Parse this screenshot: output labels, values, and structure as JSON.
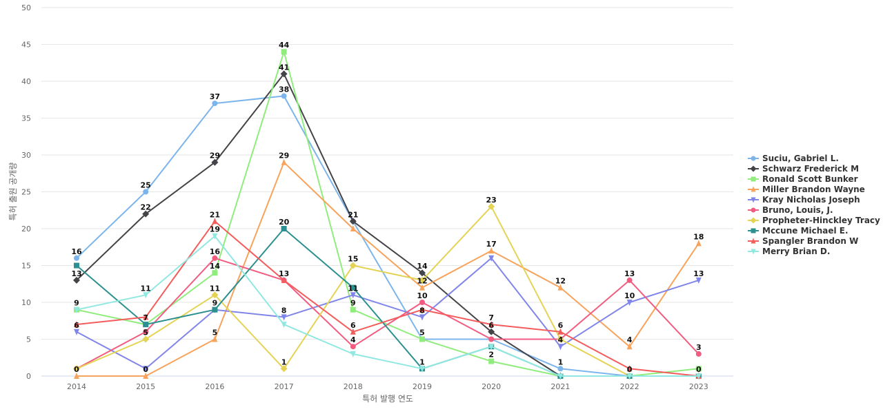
{
  "chart_data": {
    "type": "line",
    "title": "",
    "xlabel": "특허 발행 연도",
    "ylabel": "특허 출원 공개량",
    "x": [
      "2014",
      "2015",
      "2016",
      "2017",
      "2018",
      "2019",
      "2020",
      "2021",
      "2022",
      "2023"
    ],
    "ylim": [
      0,
      50
    ],
    "yticks": [
      0,
      5,
      10,
      15,
      20,
      25,
      30,
      35,
      40,
      45,
      50
    ],
    "grid": true,
    "legend_position": "right",
    "series": [
      {
        "name": "Suciu, Gabriel L.",
        "color": "#7cb5ec",
        "marker": "circle",
        "values": [
          16,
          25,
          37,
          38,
          21,
          5,
          5,
          1,
          0,
          0
        ]
      },
      {
        "name": "Schwarz Frederick M",
        "color": "#434348",
        "marker": "diamond",
        "values": [
          13,
          22,
          29,
          41,
          21,
          14,
          6,
          0,
          0,
          0
        ]
      },
      {
        "name": "Ronald Scott Bunker",
        "color": "#90ed7d",
        "marker": "square",
        "values": [
          9,
          7,
          14,
          44,
          9,
          5,
          2,
          0,
          0,
          1
        ]
      },
      {
        "name": "Miller Brandon Wayne",
        "color": "#f7a35c",
        "marker": "triangle",
        "values": [
          0,
          0,
          5,
          29,
          20,
          12,
          17,
          12,
          4,
          18
        ]
      },
      {
        "name": "Kray Nicholas Joseph",
        "color": "#8085e9",
        "marker": "triangle-down",
        "values": [
          6,
          1,
          9,
          8,
          11,
          8,
          16,
          4,
          10,
          13
        ]
      },
      {
        "name": "Bruno, Louis, J.",
        "color": "#f15c80",
        "marker": "circle",
        "values": [
          1,
          6,
          16,
          13,
          4,
          10,
          5,
          5,
          13,
          3
        ]
      },
      {
        "name": "Propheter-Hinckley Tracy A",
        "color": "#e4d354",
        "marker": "diamond",
        "values": [
          1,
          5,
          11,
          1,
          15,
          13,
          23,
          5,
          0,
          0
        ]
      },
      {
        "name": "Mccune Michael E.",
        "color": "#2b908f",
        "marker": "square",
        "values": [
          15,
          7,
          9,
          20,
          12,
          1,
          4,
          0,
          0,
          0
        ]
      },
      {
        "name": "Spangler Brandon W",
        "color": "#f45b5b",
        "marker": "triangle",
        "values": [
          7,
          8,
          21,
          13,
          6,
          9,
          7,
          6,
          1,
          0
        ]
      },
      {
        "name": "Merry Brian D.",
        "color": "#91e8e1",
        "marker": "triangle-down",
        "values": [
          9,
          11,
          19,
          7,
          3,
          1,
          4,
          0,
          0,
          0
        ]
      }
    ],
    "data_labels": [
      {
        "x": "2014",
        "text": "16",
        "value": 16
      },
      {
        "x": "2014",
        "text": "13",
        "value": 13
      },
      {
        "x": "2014",
        "text": "9",
        "value": 9
      },
      {
        "x": "2014",
        "text": "6",
        "value": 6
      },
      {
        "x": "2014",
        "text": "0",
        "value": 0
      },
      {
        "x": "2015",
        "text": "25",
        "value": 25
      },
      {
        "x": "2015",
        "text": "22",
        "value": 22
      },
      {
        "x": "2015",
        "text": "11",
        "value": 11
      },
      {
        "x": "2015",
        "text": "7",
        "value": 7
      },
      {
        "x": "2015",
        "text": "5",
        "value": 5
      },
      {
        "x": "2015",
        "text": "0",
        "value": 0
      },
      {
        "x": "2016",
        "text": "37",
        "value": 37
      },
      {
        "x": "2016",
        "text": "29",
        "value": 29
      },
      {
        "x": "2016",
        "text": "21",
        "value": 21
      },
      {
        "x": "2016",
        "text": "19",
        "value": 19
      },
      {
        "x": "2016",
        "text": "16",
        "value": 16
      },
      {
        "x": "2016",
        "text": "14",
        "value": 14
      },
      {
        "x": "2016",
        "text": "11",
        "value": 11
      },
      {
        "x": "2016",
        "text": "9",
        "value": 9
      },
      {
        "x": "2016",
        "text": "5",
        "value": 5
      },
      {
        "x": "2017",
        "text": "44",
        "value": 44
      },
      {
        "x": "2017",
        "text": "41",
        "value": 41
      },
      {
        "x": "2017",
        "text": "38",
        "value": 38
      },
      {
        "x": "2017",
        "text": "29",
        "value": 29
      },
      {
        "x": "2017",
        "text": "20",
        "value": 20
      },
      {
        "x": "2017",
        "text": "13",
        "value": 13
      },
      {
        "x": "2017",
        "text": "8",
        "value": 8
      },
      {
        "x": "2017",
        "text": "1",
        "value": 1
      },
      {
        "x": "2018",
        "text": "21",
        "value": 21
      },
      {
        "x": "2018",
        "text": "15",
        "value": 15
      },
      {
        "x": "2018",
        "text": "11",
        "value": 11
      },
      {
        "x": "2018",
        "text": "9",
        "value": 9
      },
      {
        "x": "2018",
        "text": "6",
        "value": 6
      },
      {
        "x": "2018",
        "text": "4",
        "value": 4
      },
      {
        "x": "2019",
        "text": "14",
        "value": 14
      },
      {
        "x": "2019",
        "text": "12",
        "value": 12
      },
      {
        "x": "2019",
        "text": "10",
        "value": 10
      },
      {
        "x": "2019",
        "text": "8",
        "value": 8
      },
      {
        "x": "2019",
        "text": "5",
        "value": 5
      },
      {
        "x": "2019",
        "text": "1",
        "value": 1
      },
      {
        "x": "2020",
        "text": "23",
        "value": 23
      },
      {
        "x": "2020",
        "text": "17",
        "value": 17
      },
      {
        "x": "2020",
        "text": "7",
        "value": 7
      },
      {
        "x": "2020",
        "text": "6",
        "value": 6
      },
      {
        "x": "2020",
        "text": "2",
        "value": 2
      },
      {
        "x": "2021",
        "text": "12",
        "value": 12
      },
      {
        "x": "2021",
        "text": "6",
        "value": 6
      },
      {
        "x": "2021",
        "text": "4",
        "value": 4
      },
      {
        "x": "2021",
        "text": "1",
        "value": 1
      },
      {
        "x": "2022",
        "text": "13",
        "value": 13
      },
      {
        "x": "2022",
        "text": "10",
        "value": 10
      },
      {
        "x": "2022",
        "text": "4",
        "value": 4
      },
      {
        "x": "2022",
        "text": "0",
        "value": 0
      },
      {
        "x": "2023",
        "text": "18",
        "value": 18
      },
      {
        "x": "2023",
        "text": "13",
        "value": 13
      },
      {
        "x": "2023",
        "text": "3",
        "value": 3
      },
      {
        "x": "2023",
        "text": "0",
        "value": 0
      }
    ]
  }
}
